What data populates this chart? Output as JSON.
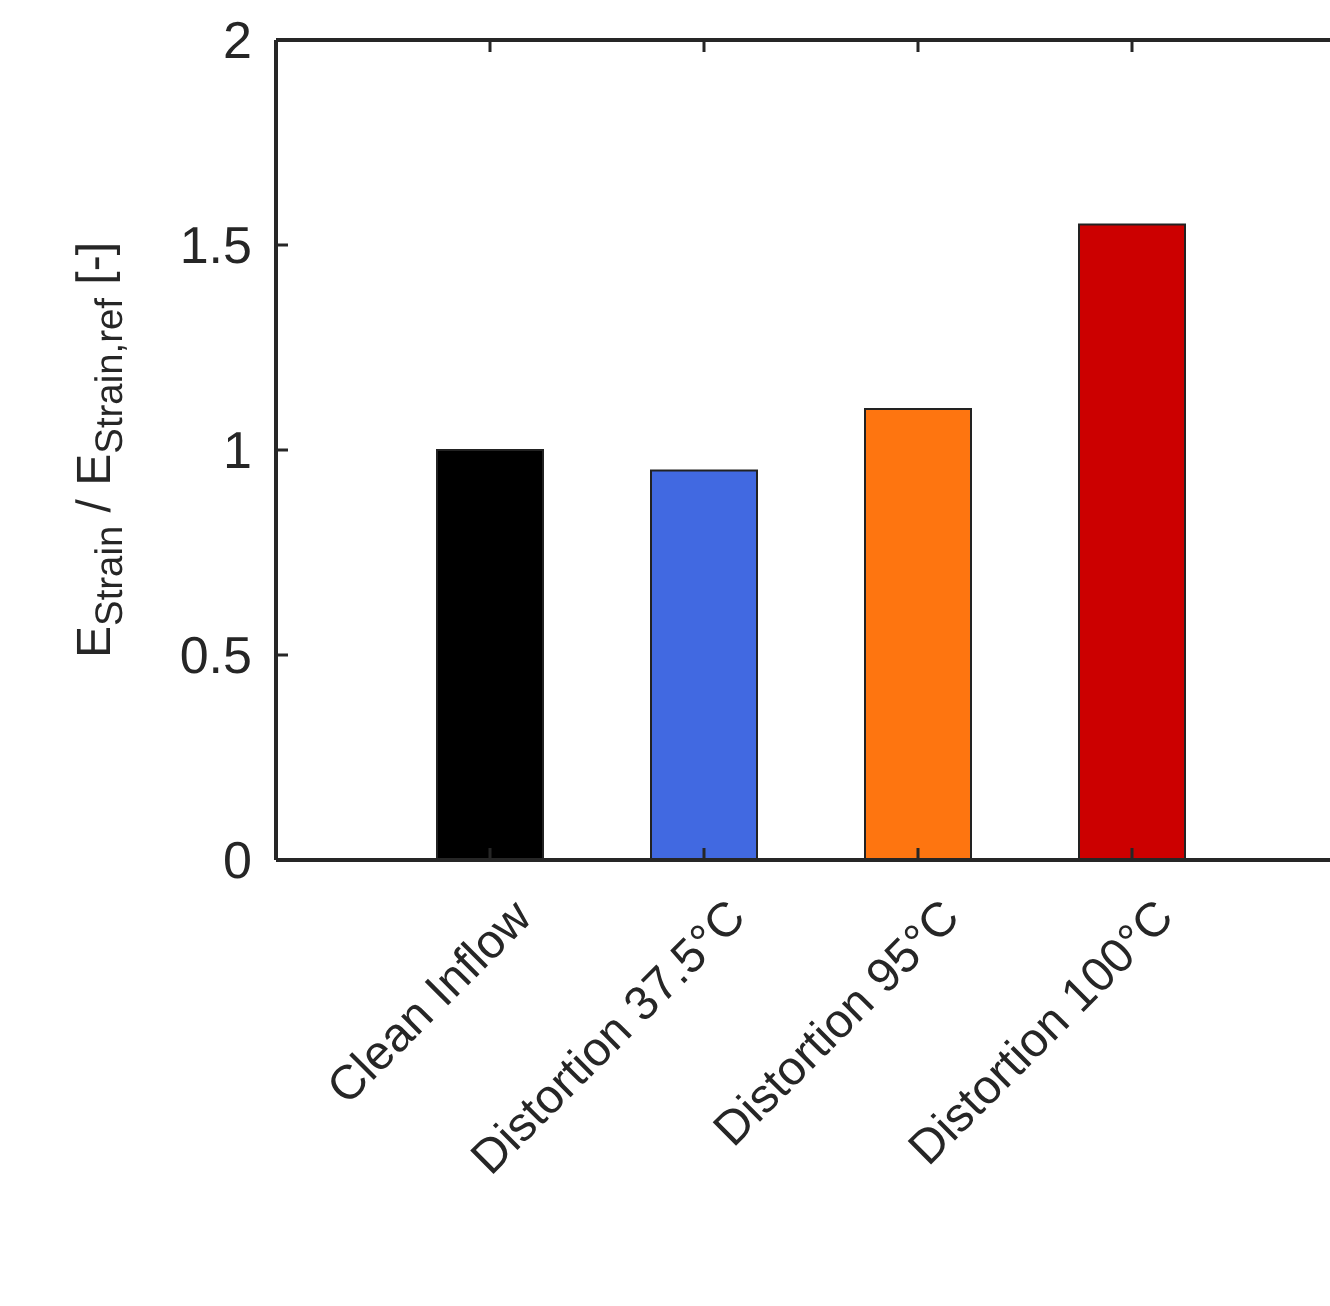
{
  "chart_data": {
    "type": "bar",
    "ylabel": "E$_{Strain}$ / E$_{Strain,ref}$ [-]",
    "categories": [
      "Clean Inflow",
      "Distortion 37.5°C",
      "Distortion 95°C",
      "Distortion 100°C"
    ],
    "values": [
      1.0,
      0.95,
      1.1,
      1.55
    ],
    "colors": [
      "#000000",
      "#4169e1",
      "#fe7510",
      "#cc0000"
    ],
    "ylim": [
      0,
      2
    ],
    "yticks": [
      0,
      0.5,
      1,
      1.5,
      2
    ],
    "grid": false
  }
}
